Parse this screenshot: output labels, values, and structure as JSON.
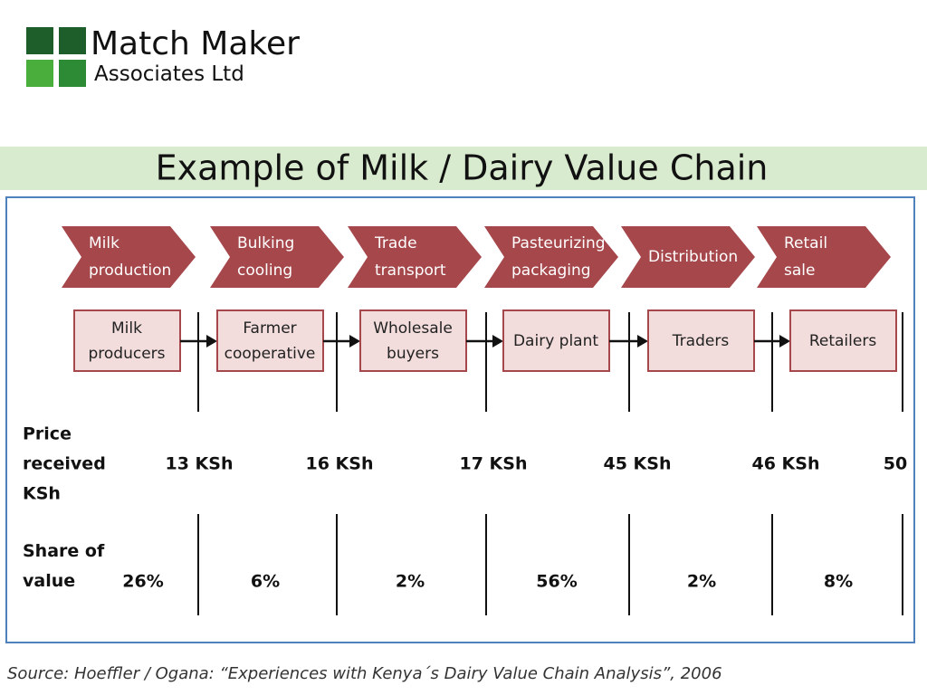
{
  "logo": {
    "name": "Match Maker",
    "subtitle": "Associates Ltd"
  },
  "title": "Example of Milk / Dairy Value Chain",
  "stages": [
    [
      "Milk",
      "production"
    ],
    [
      "Bulking",
      "cooling"
    ],
    [
      "Trade",
      "transport"
    ],
    [
      "Pasteurizing",
      "packaging"
    ],
    [
      "Distribution"
    ],
    [
      "Retail",
      "sale"
    ]
  ],
  "actors": [
    [
      "Milk",
      "producers"
    ],
    [
      "Farmer",
      "cooperative"
    ],
    [
      "Wholesale",
      "buyers"
    ],
    [
      "Dairy plant"
    ],
    [
      "Traders"
    ],
    [
      "Retailers"
    ]
  ],
  "price_label": [
    "Price",
    "received",
    "KSh"
  ],
  "prices": [
    "13 KSh",
    "16 KSh",
    "17 KSh",
    "45 KSh",
    "46  KSh",
    "50"
  ],
  "share_label": [
    "Share of",
    "value"
  ],
  "shares": [
    "26%",
    "6%",
    "2%",
    "56%",
    "2%",
    "8%"
  ],
  "source": "Source: Hoeffler / Ogana:  “Experiences with Kenya´s Dairy Value Chain Analysis”, 2006"
}
